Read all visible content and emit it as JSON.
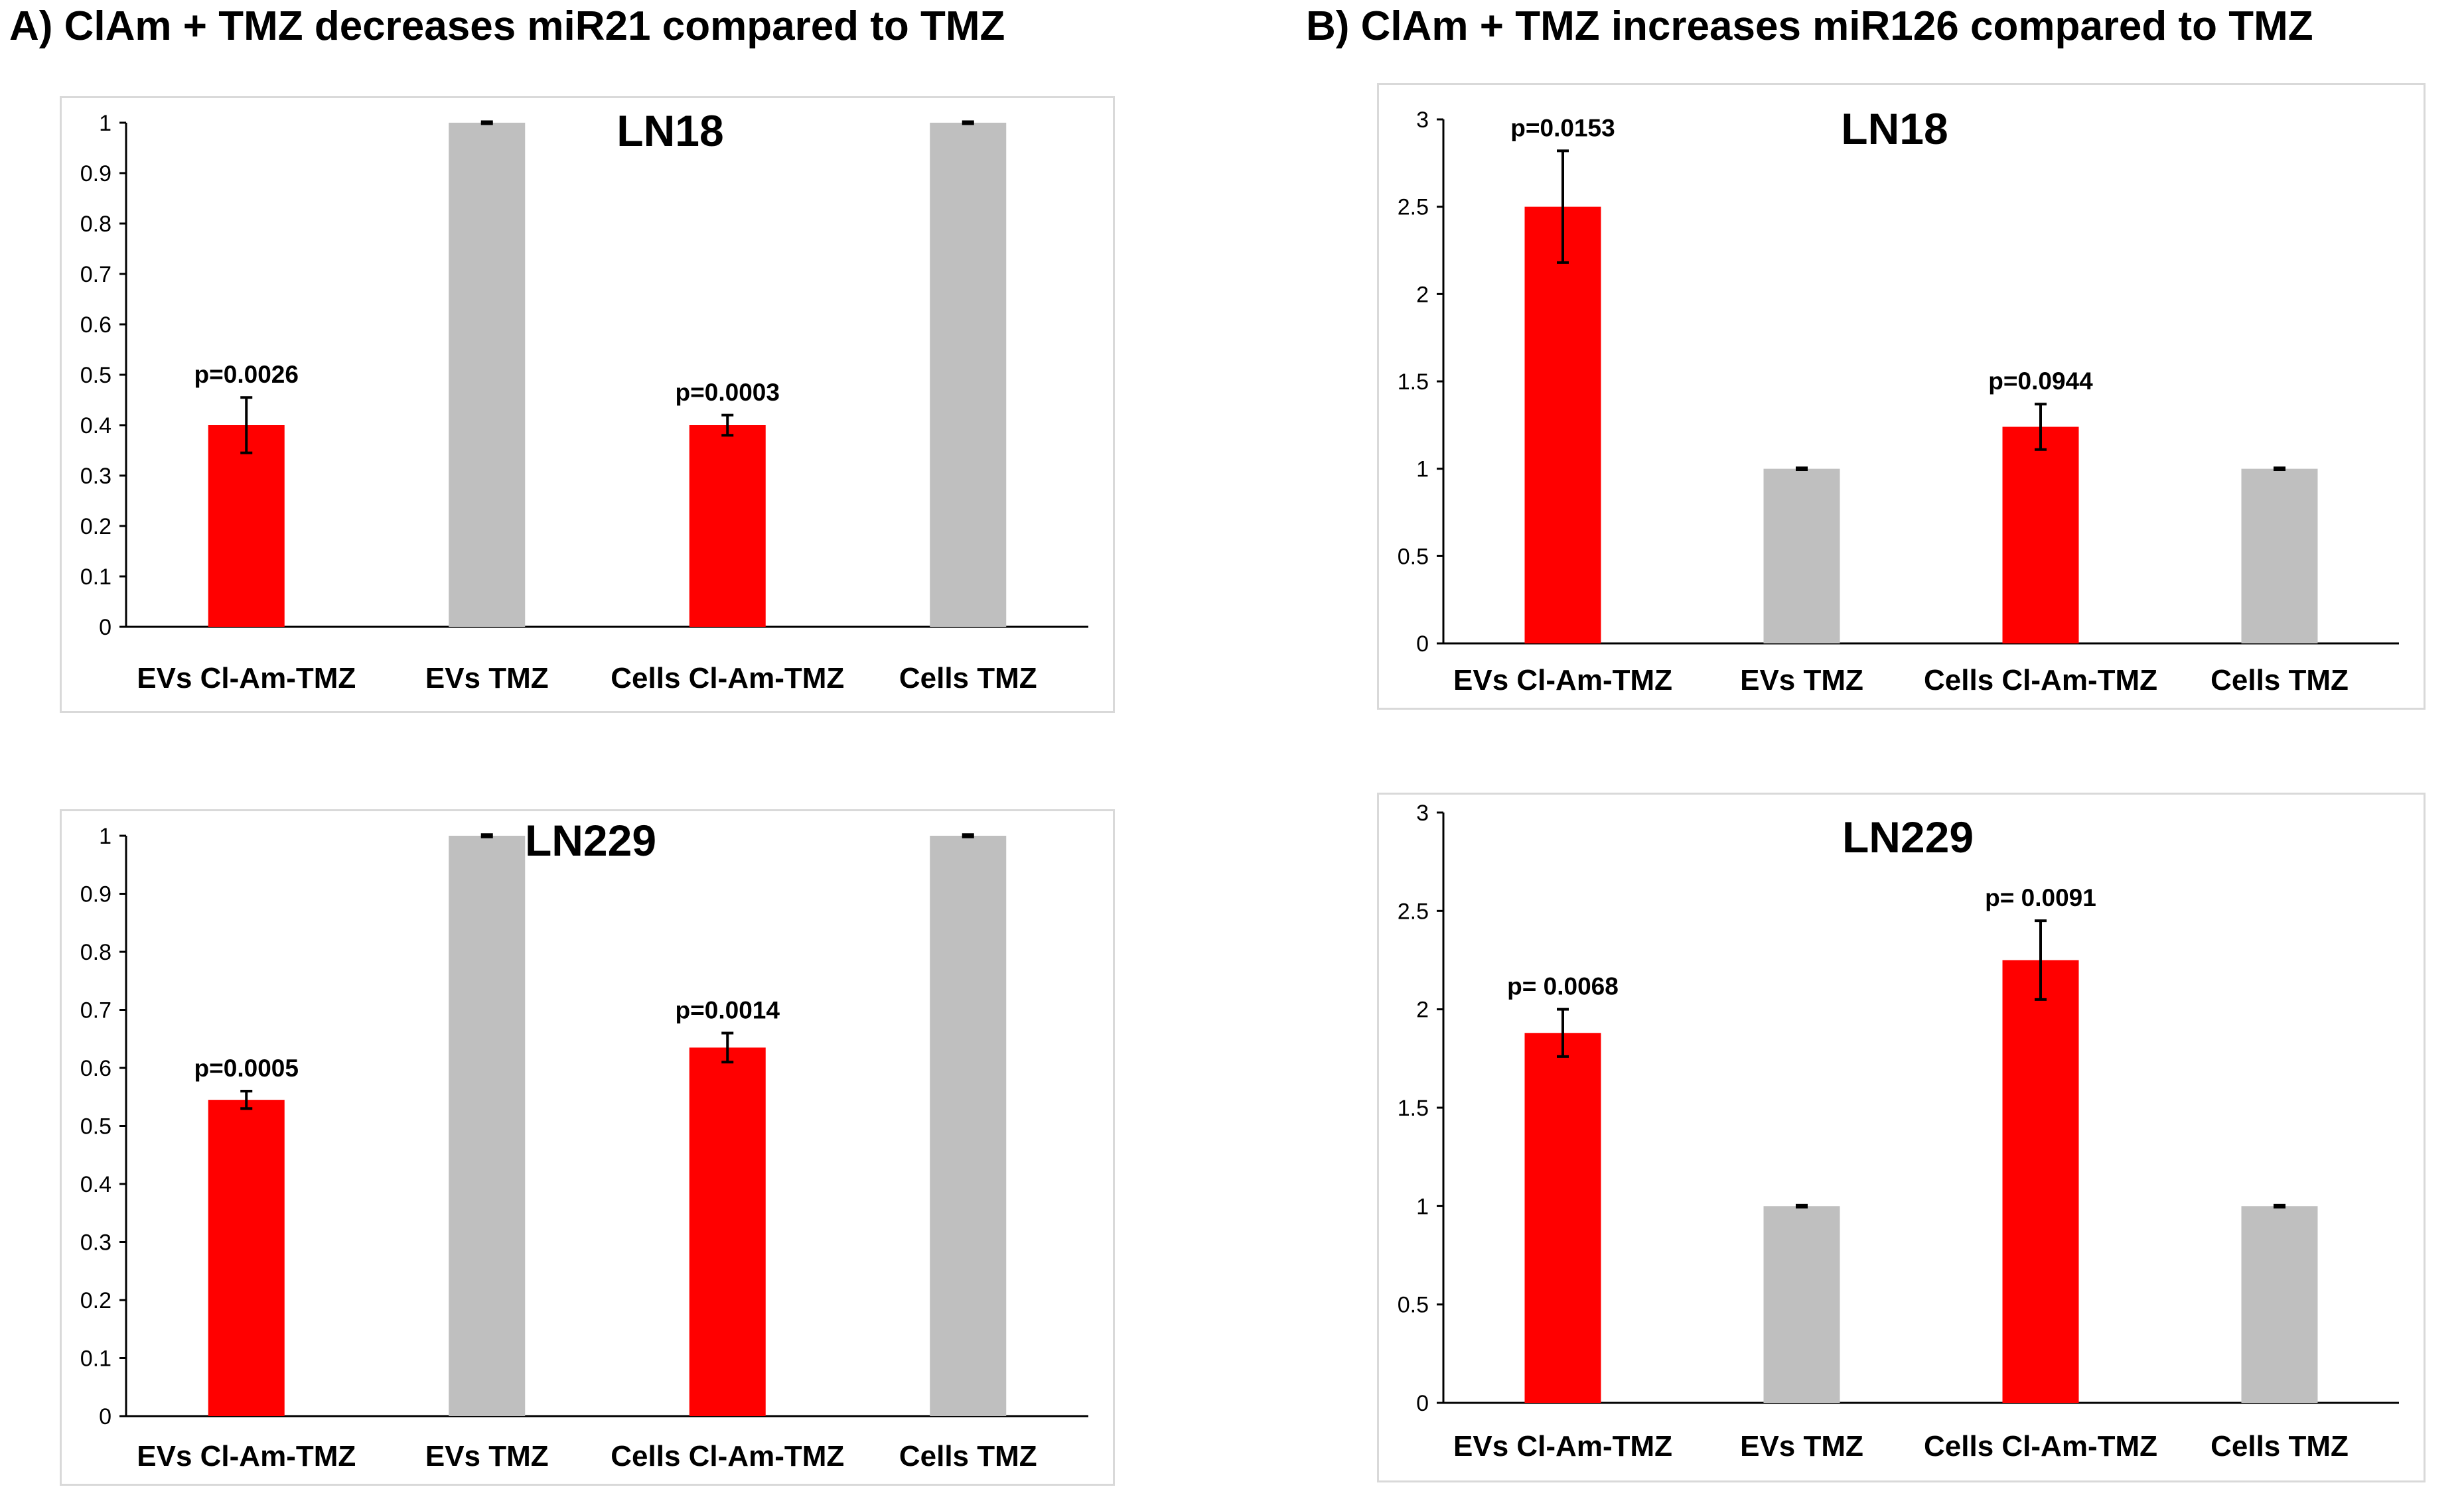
{
  "panel_titles": {
    "a": "A) ClAm + TMZ decreases miR21 compared to TMZ",
    "b": "B) ClAm + TMZ increases miR126 compared to TMZ"
  },
  "colors": {
    "treated": "#ff0000",
    "control": "#bfbfbf",
    "frame": "#d9d9d9"
  },
  "chart_data": [
    {
      "id": "a-ln18",
      "type": "bar",
      "title": "LN18",
      "categories": [
        "EVs Cl-Am-TMZ",
        "EVs TMZ",
        "Cells Cl-Am-TMZ",
        "Cells TMZ"
      ],
      "values": [
        0.4,
        1.0,
        0.4,
        1.0
      ],
      "errors": [
        0.055,
        0.002,
        0.02,
        0.002
      ],
      "bar_colors": [
        "#ff0000",
        "#bfbfbf",
        "#ff0000",
        "#bfbfbf"
      ],
      "annotations": [
        "p=0.0026",
        "",
        "p=0.0003",
        ""
      ],
      "ylim": [
        0,
        1
      ],
      "yticks": [
        0,
        0.1,
        0.2,
        0.3,
        0.4,
        0.5,
        0.6,
        0.7,
        0.8,
        0.9,
        1
      ],
      "ytick_labels": [
        "0",
        "0.1",
        "0.2",
        "0.3",
        "0.4",
        "0.5",
        "0.6",
        "0.7",
        "0.8",
        "0.9",
        "1"
      ],
      "xlabel": "",
      "ylabel": ""
    },
    {
      "id": "b-ln18",
      "type": "bar",
      "title": "LN18",
      "categories": [
        "EVs Cl-Am-TMZ",
        "EVs TMZ",
        "Cells Cl-Am-TMZ",
        "Cells TMZ"
      ],
      "values": [
        2.5,
        1.0,
        1.24,
        1.0
      ],
      "errors": [
        0.32,
        0.005,
        0.13,
        0.005
      ],
      "bar_colors": [
        "#ff0000",
        "#bfbfbf",
        "#ff0000",
        "#bfbfbf"
      ],
      "annotations": [
        "p=0.0153",
        "",
        "p=0.0944",
        ""
      ],
      "ylim": [
        0,
        3
      ],
      "yticks": [
        0,
        0.5,
        1,
        1.5,
        2,
        2.5,
        3
      ],
      "ytick_labels": [
        "0",
        "0.5",
        "1",
        "1.5",
        "2",
        "2.5",
        "3"
      ],
      "xlabel": "",
      "ylabel": ""
    },
    {
      "id": "a-ln229",
      "type": "bar",
      "title": "LN229",
      "categories": [
        "EVs Cl-Am-TMZ",
        "EVs TMZ",
        "Cells Cl-Am-TMZ",
        "Cells TMZ"
      ],
      "values": [
        0.545,
        1.0,
        0.635,
        1.0
      ],
      "errors": [
        0.015,
        0.002,
        0.025,
        0.002
      ],
      "bar_colors": [
        "#ff0000",
        "#bfbfbf",
        "#ff0000",
        "#bfbfbf"
      ],
      "annotations": [
        "p=0.0005",
        "",
        "p=0.0014",
        ""
      ],
      "ylim": [
        0,
        1
      ],
      "yticks": [
        0,
        0.1,
        0.2,
        0.3,
        0.4,
        0.5,
        0.6,
        0.7,
        0.8,
        0.9,
        1
      ],
      "ytick_labels": [
        "0",
        "0.1",
        "0.2",
        "0.3",
        "0.4",
        "0.5",
        "0.6",
        "0.7",
        "0.8",
        "0.9",
        "1"
      ],
      "xlabel": "",
      "ylabel": ""
    },
    {
      "id": "b-ln229",
      "type": "bar",
      "title": "LN229",
      "categories": [
        "EVs Cl-Am-TMZ",
        "EVs TMZ",
        "Cells Cl-Am-TMZ",
        "Cells TMZ"
      ],
      "values": [
        1.88,
        1.0,
        2.25,
        1.0
      ],
      "errors": [
        0.12,
        0.005,
        0.2,
        0.005
      ],
      "bar_colors": [
        "#ff0000",
        "#bfbfbf",
        "#ff0000",
        "#bfbfbf"
      ],
      "annotations": [
        "p= 0.0068",
        "",
        "p= 0.0091",
        ""
      ],
      "ylim": [
        0,
        3
      ],
      "yticks": [
        0,
        0.5,
        1,
        1.5,
        2,
        2.5,
        3
      ],
      "ytick_labels": [
        "0",
        "0.5",
        "1",
        "1.5",
        "2",
        "2.5",
        "3"
      ],
      "xlabel": "",
      "ylabel": ""
    }
  ]
}
